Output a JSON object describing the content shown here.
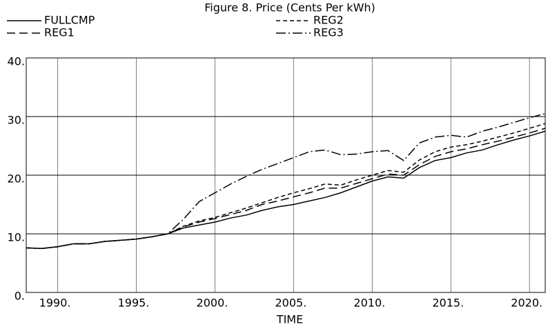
{
  "chart_data": {
    "type": "line",
    "title": "Figure 8.  Price (Cents Per kWh)",
    "xlabel": "TIME",
    "x": [
      1988,
      1989,
      1990,
      1991,
      1992,
      1993,
      1994,
      1995,
      1996,
      1997,
      1998,
      1999,
      2000,
      2001,
      2002,
      2003,
      2004,
      2005,
      2006,
      2007,
      2008,
      2009,
      2010,
      2011,
      2012,
      2013,
      2014,
      2015,
      2016,
      2017,
      2018,
      2019,
      2020,
      2021
    ],
    "series": [
      {
        "name": "FULLCMP",
        "color": "#000000",
        "dash": "none",
        "values": [
          7.6,
          7.5,
          7.8,
          8.3,
          8.3,
          8.7,
          8.9,
          9.1,
          9.5,
          10.0,
          11.0,
          11.5,
          12.0,
          12.7,
          13.2,
          14.0,
          14.6,
          15.0,
          15.6,
          16.2,
          17.0,
          18.0,
          19.0,
          19.7,
          19.5,
          21.3,
          22.5,
          23.0,
          23.8,
          24.3,
          25.2,
          26.0,
          26.7,
          27.5
        ]
      },
      {
        "name": "REG1",
        "color": "#000000",
        "dash": "12 6",
        "values": [
          7.6,
          7.5,
          7.8,
          8.3,
          8.3,
          8.7,
          8.9,
          9.1,
          9.5,
          10.0,
          11.2,
          12.0,
          12.6,
          13.3,
          14.0,
          15.0,
          15.6,
          16.3,
          17.0,
          17.8,
          17.8,
          18.6,
          19.4,
          20.2,
          20.0,
          21.8,
          23.2,
          24.0,
          24.5,
          25.2,
          25.8,
          26.5,
          27.2,
          28.0
        ]
      },
      {
        "name": "REG2",
        "color": "#000000",
        "dash": "6 4",
        "values": [
          7.6,
          7.5,
          7.8,
          8.3,
          8.3,
          8.7,
          8.9,
          9.1,
          9.5,
          10.0,
          11.3,
          12.2,
          12.8,
          13.6,
          14.4,
          15.3,
          16.2,
          17.0,
          17.7,
          18.5,
          18.3,
          19.2,
          20.0,
          20.8,
          20.5,
          22.6,
          24.0,
          24.8,
          25.2,
          25.8,
          26.5,
          27.2,
          28.0,
          28.8
        ]
      },
      {
        "name": "REG3",
        "color": "#000000",
        "dash": "14 4 2 4",
        "values": [
          7.6,
          7.5,
          7.8,
          8.3,
          8.3,
          8.7,
          8.9,
          9.1,
          9.5,
          10.0,
          12.5,
          15.5,
          17.0,
          18.5,
          19.8,
          21.0,
          22.0,
          23.0,
          24.0,
          24.3,
          23.5,
          23.6,
          24.0,
          24.2,
          22.5,
          25.5,
          26.5,
          26.8,
          26.5,
          27.5,
          28.2,
          29.0,
          29.8,
          30.5
        ]
      }
    ],
    "xlim": [
      1988,
      2021
    ],
    "xticks": [
      {
        "value": 1990,
        "label": "1990."
      },
      {
        "value": 1995,
        "label": "1995."
      },
      {
        "value": 2000,
        "label": "2000."
      },
      {
        "value": 2005,
        "label": "2005."
      },
      {
        "value": 2010,
        "label": "2010."
      },
      {
        "value": 2015,
        "label": "2015."
      },
      {
        "value": 2020,
        "label": "2020."
      }
    ],
    "ylim": [
      0,
      40
    ],
    "yticks": [
      {
        "value": 0,
        "label": "0."
      },
      {
        "value": 10,
        "label": "10."
      },
      {
        "value": 20,
        "label": "20."
      },
      {
        "value": 30,
        "label": "30."
      },
      {
        "value": 40,
        "label": "40."
      }
    ],
    "grid": true
  }
}
